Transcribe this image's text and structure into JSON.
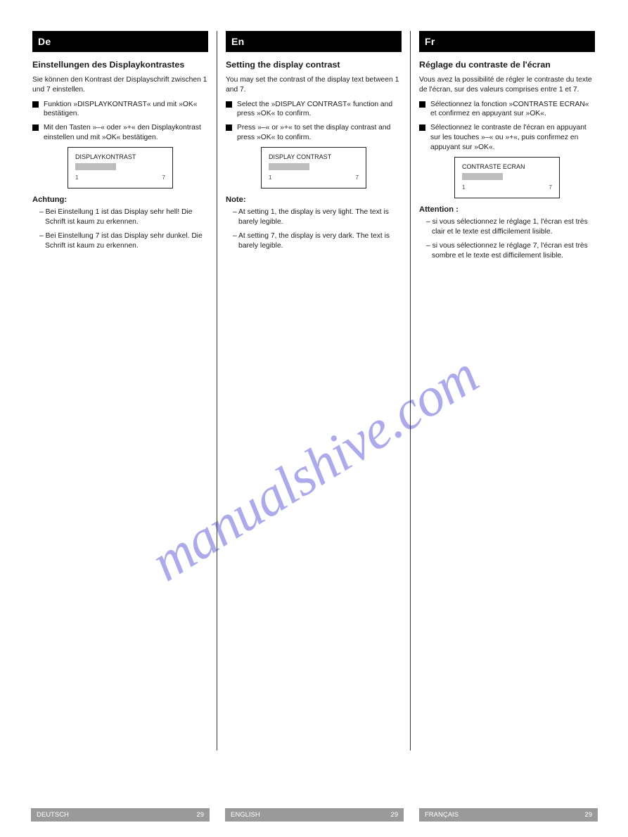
{
  "watermark": "manualshive.com",
  "columns": [
    {
      "lang_bar": "De",
      "title": "Einstellungen des Displaykontrastes",
      "intro": "Sie können den Kontrast der Displayschrift zwischen 1 und 7 einstellen.",
      "bullets": [
        "Funktion »DISPLAYKONTRAST« und mit »OK« bestätigen.",
        "Mit den Tasten »–« oder »+« den Displaykontrast einstellen und mit »OK« bestätigen."
      ],
      "display": {
        "label": "DISPLAYKONTRAST",
        "bar_width_pct": 40,
        "scale_left": "1",
        "scale_right": "7"
      },
      "warn_heading": "Achtung:",
      "warn_items": [
        "Bei Einstellung 1 ist das Display sehr hell! Die Schrift ist kaum zu erkennen.",
        "Bei Einstellung 7 ist das Display sehr dunkel. Die Schrift ist kaum zu erkennen."
      ],
      "page_left": "DEUTSCH",
      "page_right": "29"
    },
    {
      "lang_bar": "En",
      "title": "Setting the display contrast",
      "intro": "You may set the contrast of the display text between 1 and 7.",
      "bullets": [
        "Select the »DISPLAY CONTRAST« function and press »OK« to confirm.",
        "Press »–« or »+« to set the display contrast and press »OK« to confirm."
      ],
      "display": {
        "label": "DISPLAY CONTRAST",
        "bar_width_pct": 40,
        "scale_left": "1",
        "scale_right": "7"
      },
      "warn_heading": "Note:",
      "warn_items": [
        "At setting 1, the display is very light. The text is barely legible.",
        "At setting 7, the display is very dark. The text is barely legible."
      ],
      "page_left": "ENGLISH",
      "page_right": "29"
    },
    {
      "lang_bar": "Fr",
      "title": "Réglage du contraste de l'écran",
      "intro": "Vous avez la possibilité de régler le contraste du texte de l'écran, sur des valeurs comprises entre 1 et 7.",
      "bullets": [
        "Sélectionnez la fonction »CONTRASTE ECRAN« et confirmez en appuyant sur »OK«.",
        "Sélectionnez le contraste de l'écran en appuyant sur les touches »–« ou »+«, puis confirmez en appuyant sur »OK«."
      ],
      "display": {
        "label": "CONTRASTE ECRAN",
        "bar_width_pct": 40,
        "scale_left": "1",
        "scale_right": "7"
      },
      "warn_heading": "Attention :",
      "warn_items": [
        "si vous sélectionnez le réglage 1, l'écran est très clair et le texte est difficilement lisible.",
        "si vous sélectionnez le réglage 7, l'écran est très sombre et le texte est difficilement lisible."
      ],
      "page_left": "FRANÇAIS",
      "page_right": "29"
    }
  ]
}
